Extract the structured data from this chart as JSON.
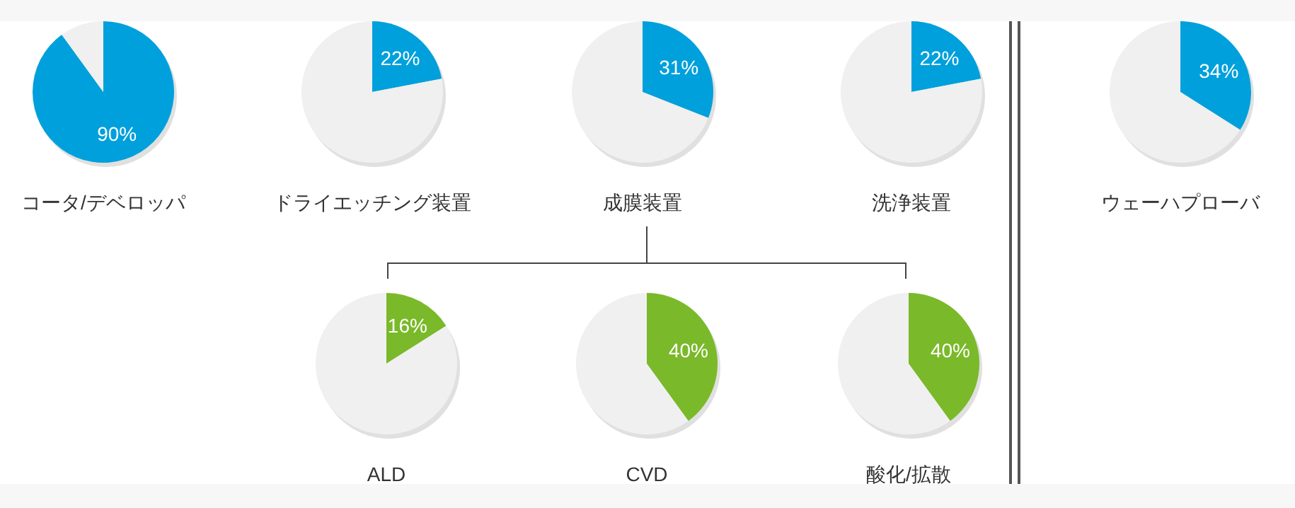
{
  "chart_data": [
    {
      "type": "pie",
      "title": "コータ/デベロッパ",
      "categories": [
        null,
        null
      ],
      "values": [
        90,
        10
      ],
      "colors": [
        "#00a0dc",
        "#f0f0f0"
      ],
      "value_labels": [
        "90%",
        null
      ]
    },
    {
      "type": "pie",
      "title": "ドライエッチング装置",
      "categories": [
        null,
        null
      ],
      "values": [
        22,
        78
      ],
      "colors": [
        "#00a0dc",
        "#f0f0f0"
      ],
      "value_labels": [
        "22%",
        null
      ]
    },
    {
      "type": "pie",
      "title": "成膜装置",
      "categories": [
        null,
        null
      ],
      "values": [
        31,
        69
      ],
      "colors": [
        "#00a0dc",
        "#f0f0f0"
      ],
      "value_labels": [
        "31%",
        null
      ]
    },
    {
      "type": "pie",
      "title": "洗浄装置",
      "categories": [
        null,
        null
      ],
      "values": [
        22,
        78
      ],
      "colors": [
        "#00a0dc",
        "#f0f0f0"
      ],
      "value_labels": [
        "22%",
        null
      ]
    },
    {
      "type": "pie",
      "title": "ウェーハプローバ",
      "categories": [
        null,
        null
      ],
      "values": [
        34,
        66
      ],
      "colors": [
        "#00a0dc",
        "#f0f0f0"
      ],
      "value_labels": [
        "34%",
        null
      ]
    },
    {
      "type": "pie",
      "title": "ALD",
      "categories": [
        null,
        null
      ],
      "values": [
        16,
        84
      ],
      "colors": [
        "#7ab929",
        "#f0f0f0"
      ],
      "value_labels": [
        "16%",
        null
      ]
    },
    {
      "type": "pie",
      "title": "CVD",
      "categories": [
        null,
        null
      ],
      "values": [
        40,
        60
      ],
      "colors": [
        "#7ab929",
        "#f0f0f0"
      ],
      "value_labels": [
        "40%",
        null
      ]
    },
    {
      "type": "pie",
      "title": "酸化/拡散",
      "categories": [
        null,
        null
      ],
      "values": [
        40,
        60
      ],
      "colors": [
        "#7ab929",
        "#f0f0f0"
      ],
      "value_labels": [
        "40%",
        null
      ]
    }
  ]
}
